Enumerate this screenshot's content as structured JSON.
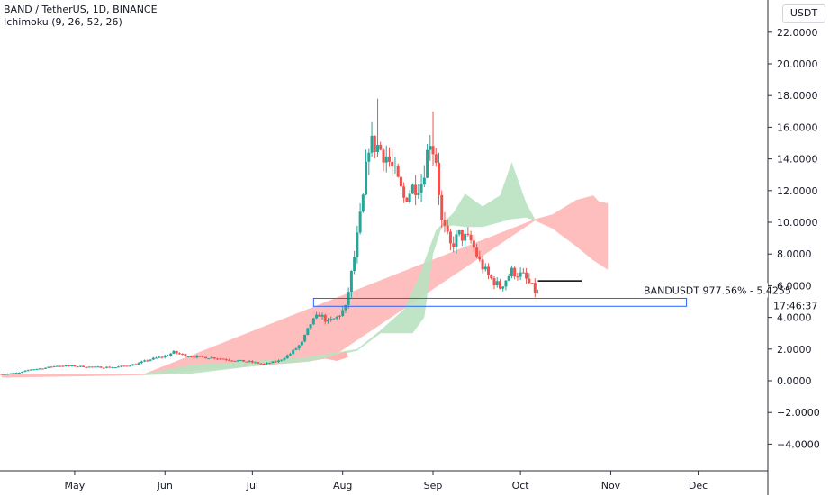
{
  "header": {
    "title": "BAND / TetherUS, 1D, BINANCE",
    "indicator": "Ichimoku (9, 26, 52, 26)",
    "currency_button": "USDT"
  },
  "colors": {
    "up": "#26a69a",
    "down": "#ef5350",
    "cloud_bull": "#b9e2c0",
    "cloud_bear": "#ffb3b3",
    "box": "#2962ff",
    "axis_text": "#131722"
  },
  "annotations": {
    "price_label": "BANDUSDT 977.56% - 5.4255",
    "countdown": "17:46:37"
  },
  "chart_data": {
    "type": "candlestick",
    "y_axis": {
      "ylim": [
        -5.6,
        23.5
      ],
      "ticks": [
        -4,
        -2,
        0,
        2,
        4,
        6,
        8,
        10,
        12,
        14,
        16,
        18,
        20,
        22
      ],
      "tick_labels": [
        "−4.0000",
        "−2.0000",
        "0.0000",
        "2.0000",
        "4.0000",
        "6.0000",
        "8.0000",
        "10.0000",
        "12.0000",
        "14.0000",
        "16.0000",
        "18.0000",
        "20.0000",
        "22.0000"
      ]
    },
    "x_axis": {
      "start": "2020-04-06",
      "end": "2020-12-24",
      "months": [
        {
          "label": "May",
          "date": "2020-05-01"
        },
        {
          "label": "Jun",
          "date": "2020-06-01"
        },
        {
          "label": "Jul",
          "date": "2020-07-01"
        },
        {
          "label": "Aug",
          "date": "2020-08-01"
        },
        {
          "label": "Sep",
          "date": "2020-09-01"
        },
        {
          "label": "Oct",
          "date": "2020-10-01"
        },
        {
          "label": "Nov",
          "date": "2020-11-01"
        },
        {
          "label": "Dec",
          "date": "2020-12-01"
        }
      ]
    },
    "close_path": [
      [
        "2020-04-06",
        0.42
      ],
      [
        "2020-04-12",
        0.5
      ],
      [
        "2020-04-16",
        0.72
      ],
      [
        "2020-04-20",
        0.78
      ],
      [
        "2020-04-25",
        0.95
      ],
      [
        "2020-05-01",
        0.92
      ],
      [
        "2020-05-08",
        0.86
      ],
      [
        "2020-05-15",
        0.85
      ],
      [
        "2020-05-22",
        1.05
      ],
      [
        "2020-05-27",
        1.35
      ],
      [
        "2020-06-01",
        1.55
      ],
      [
        "2020-06-04",
        1.8
      ],
      [
        "2020-06-08",
        1.6
      ],
      [
        "2020-06-12",
        1.5
      ],
      [
        "2020-06-18",
        1.45
      ],
      [
        "2020-06-24",
        1.3
      ],
      [
        "2020-06-30",
        1.2
      ],
      [
        "2020-07-05",
        1.05
      ],
      [
        "2020-07-10",
        1.25
      ],
      [
        "2020-07-14",
        1.7
      ],
      [
        "2020-07-18",
        2.4
      ],
      [
        "2020-07-21",
        3.6
      ],
      [
        "2020-07-24",
        4.2
      ],
      [
        "2020-07-27",
        3.7
      ],
      [
        "2020-07-30",
        4.0
      ],
      [
        "2020-08-02",
        4.6
      ],
      [
        "2020-08-05",
        7.8
      ],
      [
        "2020-08-08",
        11.5
      ],
      [
        "2020-08-10",
        15.0
      ],
      [
        "2020-08-13",
        14.8
      ],
      [
        "2020-08-16",
        14.2
      ],
      [
        "2020-08-19",
        13.0
      ],
      [
        "2020-08-22",
        11.5
      ],
      [
        "2020-08-25",
        12.2
      ],
      [
        "2020-08-28",
        12.5
      ],
      [
        "2020-08-31",
        15.3
      ],
      [
        "2020-09-02",
        14.0
      ],
      [
        "2020-09-04",
        10.0
      ],
      [
        "2020-09-07",
        8.5
      ],
      [
        "2020-09-10",
        9.2
      ],
      [
        "2020-09-14",
        8.8
      ],
      [
        "2020-09-17",
        7.5
      ],
      [
        "2020-09-20",
        6.6
      ],
      [
        "2020-09-24",
        5.9
      ],
      [
        "2020-09-28",
        6.9
      ],
      [
        "2020-10-02",
        6.6
      ],
      [
        "2020-10-05",
        5.9
      ],
      [
        "2020-10-07",
        5.45
      ]
    ],
    "cloud_bull": {
      "upper": [
        [
          "2020-05-25",
          0.45
        ],
        [
          "2020-06-10",
          1.0
        ],
        [
          "2020-07-05",
          1.3
        ],
        [
          "2020-07-20",
          1.5
        ],
        [
          "2020-08-06",
          2.0
        ],
        [
          "2020-08-14",
          3.2
        ],
        [
          "2020-08-22",
          4.5
        ],
        [
          "2020-08-27",
          6.5
        ],
        [
          "2020-09-02",
          9.5
        ],
        [
          "2020-09-08",
          10.6
        ],
        [
          "2020-09-12",
          11.8
        ],
        [
          "2020-09-18",
          11.0
        ],
        [
          "2020-09-24",
          11.7
        ],
        [
          "2020-09-28",
          13.8
        ],
        [
          "2020-10-03",
          11.2
        ],
        [
          "2020-10-06",
          10.2
        ]
      ],
      "lower": [
        [
          "2020-10-06",
          10.1
        ],
        [
          "2020-10-03",
          10.3
        ],
        [
          "2020-09-28",
          10.2
        ],
        [
          "2020-09-24",
          10.0
        ],
        [
          "2020-09-18",
          9.7
        ],
        [
          "2020-09-12",
          9.7
        ],
        [
          "2020-09-08",
          9.8
        ],
        [
          "2020-09-04",
          9.7
        ],
        [
          "2020-09-01",
          8.0
        ],
        [
          "2020-08-29",
          4.0
        ],
        [
          "2020-08-25",
          3.0
        ],
        [
          "2020-08-14",
          3.0
        ],
        [
          "2020-08-06",
          1.9
        ],
        [
          "2020-07-20",
          1.2
        ],
        [
          "2020-07-05",
          1.0
        ],
        [
          "2020-06-10",
          0.45
        ],
        [
          "2020-05-25",
          0.35
        ]
      ]
    },
    "cloud_bear": {
      "upper": [
        [
          "2020-04-06",
          0.42
        ],
        [
          "2020-05-25",
          0.45
        ],
        [
          "2020-10-06",
          10.2
        ],
        [
          "2020-10-12",
          10.5
        ],
        [
          "2020-10-20",
          11.4
        ],
        [
          "2020-10-26",
          11.7
        ],
        [
          "2020-10-28",
          11.3
        ],
        [
          "2020-10-31",
          11.2
        ]
      ],
      "lower": [
        [
          "2020-10-31",
          7.0
        ],
        [
          "2020-10-26",
          7.6
        ],
        [
          "2020-10-20",
          8.5
        ],
        [
          "2020-10-12",
          9.6
        ],
        [
          "2020-10-06",
          10.1
        ],
        [
          "2020-07-28",
          1.45
        ],
        [
          "2020-07-20",
          1.2
        ],
        [
          "2020-05-25",
          0.35
        ],
        [
          "2020-04-06",
          0.2
        ]
      ]
    },
    "bear_blip": [
      [
        "2020-07-26",
        1.4
      ],
      [
        "2020-07-30",
        1.25
      ],
      [
        "2020-08-03",
        1.5
      ],
      [
        "2020-08-02",
        1.85
      ],
      [
        "2020-07-29",
        1.6
      ]
    ],
    "level_lines": [
      {
        "from": "2020-10-07",
        "to": "2020-10-22",
        "value": 6.3,
        "color": "#000000"
      }
    ],
    "horizontal_box": {
      "from": "2020-07-22",
      "to": "2020-11-27",
      "top": 5.2,
      "bottom": 4.7
    },
    "last_price": 5.4255
  }
}
